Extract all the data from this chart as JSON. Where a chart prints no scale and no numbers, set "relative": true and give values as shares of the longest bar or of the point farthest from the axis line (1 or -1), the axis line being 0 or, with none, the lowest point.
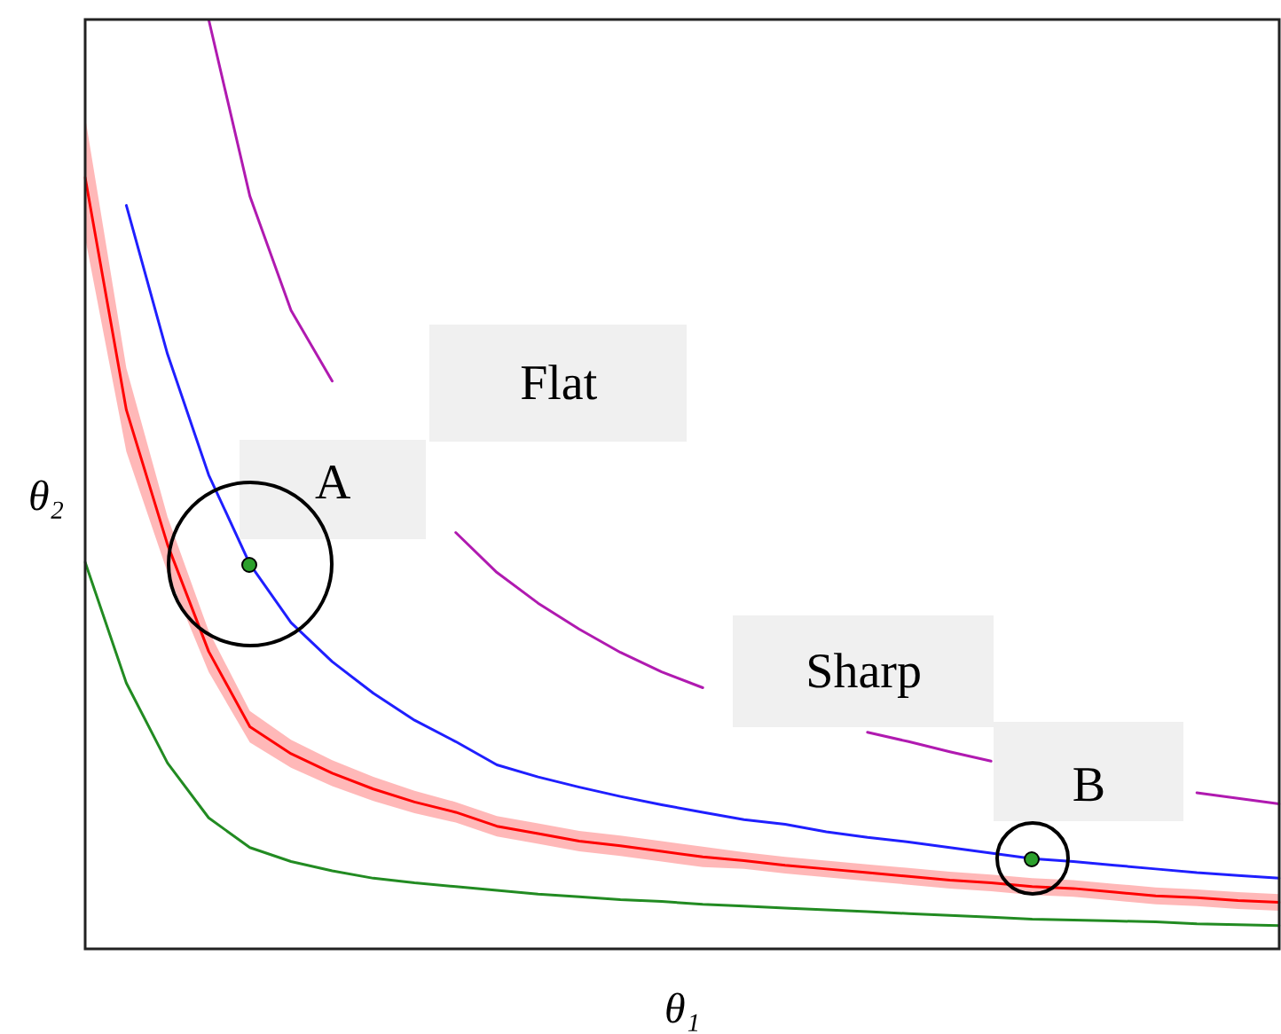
{
  "chart_data": {
    "type": "line",
    "relative": true,
    "xlabel": "θ₁",
    "ylabel": "θ₂",
    "legend": false,
    "marker": "none",
    "line_style": "solid",
    "categories": [
      null,
      null,
      null,
      null,
      null,
      null,
      null,
      null,
      null,
      null,
      null,
      null,
      null,
      null,
      null,
      null,
      null,
      null,
      null,
      null,
      null,
      null,
      null,
      null,
      null,
      null,
      null,
      null,
      null,
      null
    ],
    "series": [
      {
        "color": "#b01ab0",
        "values": [
          null,
          null,
          null,
          1,
          0.81,
          0.687,
          0.611,
          null,
          null,
          0.448,
          0.405,
          0.372,
          0.344,
          0.319,
          0.298,
          0.281,
          null,
          null,
          null,
          0.233,
          0.223,
          0.212,
          0.202,
          null,
          null,
          null,
          null,
          0.168,
          0.162,
          0.156
        ]
      },
      {
        "color": "#1f1fff",
        "values": [
          null,
          0.8,
          0.64,
          0.51,
          0.414,
          0.351,
          0.309,
          0.275,
          0.246,
          0.223,
          0.198,
          0.185,
          0.174,
          0.164,
          0.155,
          0.147,
          0.139,
          0.134,
          0.126,
          0.12,
          0.115,
          0.109,
          0.103,
          0.097,
          0.094,
          0.09,
          0.086,
          0.082,
          0.079,
          0.076
        ]
      },
      {
        "color": "#ff0000",
        "values": [
          0.83,
          0.58,
          0.435,
          0.32,
          0.239,
          0.21,
          0.189,
          0.172,
          0.158,
          0.147,
          0.132,
          0.124,
          0.116,
          0.111,
          0.105,
          0.099,
          0.095,
          0.09,
          0.086,
          0.082,
          0.078,
          0.074,
          0.071,
          0.067,
          0.065,
          0.061,
          0.057,
          0.055,
          0.052,
          0.05
        ],
        "lower": [
          0.765,
          0.535,
          0.405,
          0.298,
          0.222,
          0.195,
          0.175,
          0.159,
          0.146,
          0.136,
          0.121,
          0.113,
          0.105,
          0.1,
          0.094,
          0.088,
          0.086,
          0.081,
          0.077,
          0.073,
          0.069,
          0.065,
          0.062,
          0.058,
          0.056,
          0.052,
          0.048,
          0.046,
          0.043,
          0.041
        ],
        "upper": [
          0.895,
          0.625,
          0.465,
          0.342,
          0.256,
          0.225,
          0.203,
          0.185,
          0.17,
          0.158,
          0.143,
          0.135,
          0.127,
          0.122,
          0.116,
          0.11,
          0.104,
          0.099,
          0.095,
          0.091,
          0.087,
          0.083,
          0.08,
          0.076,
          0.074,
          0.07,
          0.066,
          0.064,
          0.061,
          0.059
        ]
      },
      {
        "color": "#228b22",
        "values": [
          0.416,
          0.286,
          0.2,
          0.141,
          0.109,
          0.094,
          0.084,
          0.076,
          0.071,
          0.067,
          0.063,
          0.059,
          0.056,
          0.053,
          0.051,
          0.048,
          0.046,
          0.044,
          0.042,
          0.04,
          0.038,
          0.036,
          0.034,
          0.032,
          0.031,
          0.03,
          0.029,
          0.027,
          0.026,
          0.025
        ]
      }
    ],
    "annotations": [
      "Flat",
      "A",
      "Sharp",
      "B"
    ]
  }
}
